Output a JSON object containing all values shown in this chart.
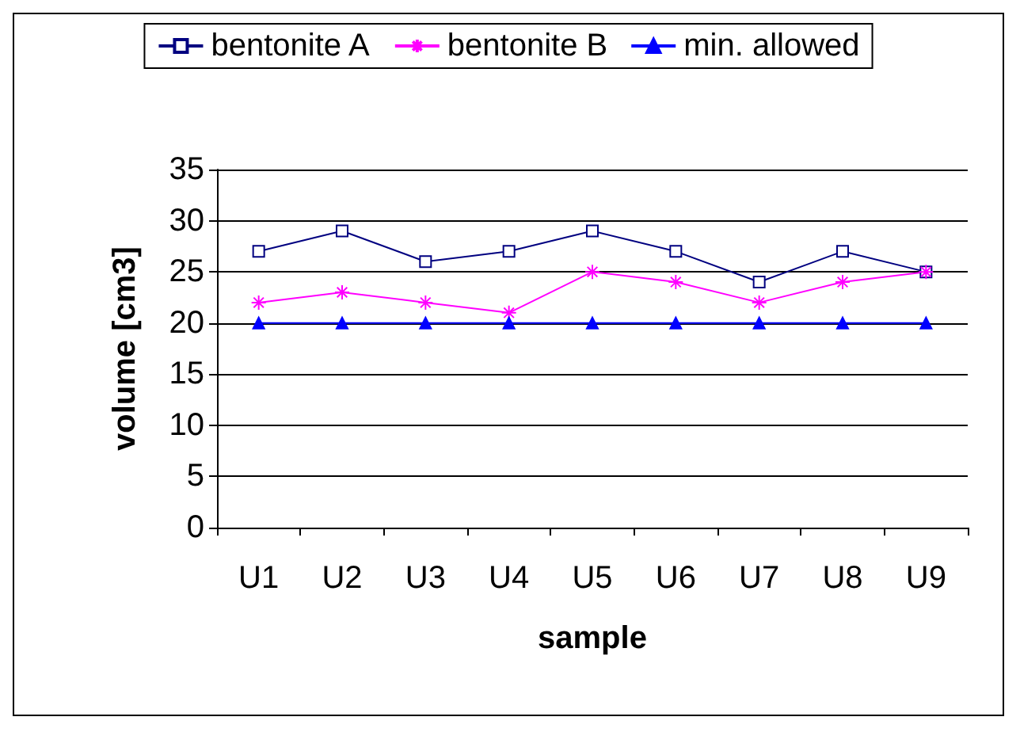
{
  "chart_data": {
    "type": "line",
    "xlabel": "sample",
    "ylabel": "volume [cm3]",
    "categories": [
      "U1",
      "U2",
      "U3",
      "U4",
      "U5",
      "U6",
      "U7",
      "U8",
      "U9"
    ],
    "series": [
      {
        "name": "bentonite A",
        "color": "#000080",
        "marker": "square",
        "values": [
          27,
          29,
          26,
          27,
          29,
          27,
          24,
          27,
          25
        ]
      },
      {
        "name": "bentonite B",
        "color": "#ff00ff",
        "marker": "cross",
        "values": [
          22,
          23,
          22,
          21,
          25,
          24,
          22,
          24,
          25
        ]
      },
      {
        "name": "min. allowed",
        "color": "#0000ff",
        "marker": "triangle",
        "values": [
          20,
          20,
          20,
          20,
          20,
          20,
          20,
          20,
          20
        ]
      }
    ],
    "ylim": [
      0,
      35
    ],
    "yticks": [
      0,
      5,
      10,
      15,
      20,
      25,
      30,
      35
    ],
    "grid": "y",
    "legend": "top"
  }
}
